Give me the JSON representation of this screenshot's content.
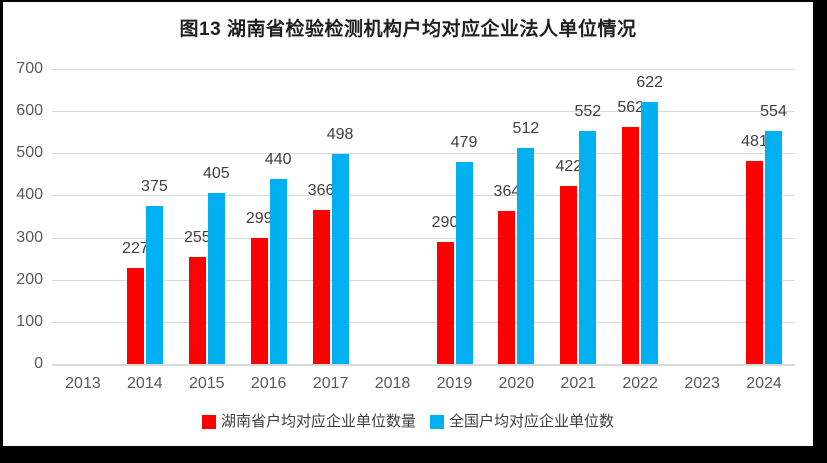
{
  "frame": {
    "background": "#000000",
    "chart_background": "#FFFFFF"
  },
  "chart_data": {
    "type": "bar",
    "title": "图13 湖南省检验检测机构户均对应企业法人单位情况",
    "categories": [
      "2013",
      "2014",
      "2015",
      "2016",
      "2017",
      "2018",
      "2019",
      "2020",
      "2021",
      "2022",
      "2023",
      "2024"
    ],
    "series": [
      {
        "name": "湖南省户均对应企业单位数量",
        "key": "hunan",
        "color": "#FF0000",
        "values": [
          null,
          227,
          255,
          299,
          366,
          null,
          290,
          364,
          422,
          562,
          null,
          481
        ]
      },
      {
        "name": "全国户均对应企业单位数",
        "key": "national",
        "color": "#00B0F0",
        "values": [
          null,
          375,
          405,
          440,
          498,
          null,
          479,
          512,
          552,
          622,
          null,
          554
        ]
      }
    ],
    "xlabel": "",
    "ylabel": "",
    "ylim": [
      0,
      700
    ],
    "ytick_step": 100,
    "grid": true,
    "legend_position": "bottom",
    "colors": {
      "gridline": "#D9D9D9",
      "axis_text": "#595959",
      "data_label_text": "#404040",
      "legend_text": "#404040",
      "title_text": "#1F1F1F"
    }
  }
}
